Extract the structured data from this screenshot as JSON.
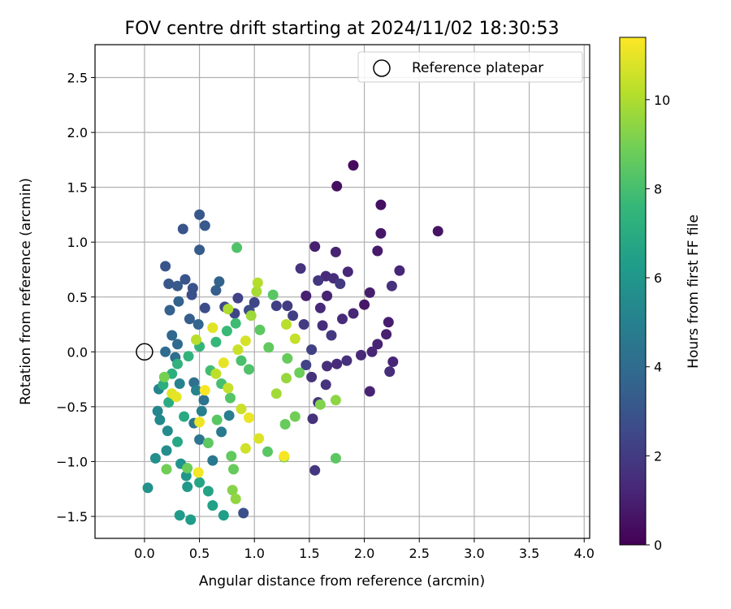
{
  "chart_data": {
    "type": "scatter",
    "title": "FOV centre drift starting at 2024/11/02 18:30:53",
    "xlabel": "Angular distance from reference (arcmin)",
    "ylabel": "Rotation from reference (arcmin)",
    "xlim": [
      -0.45,
      4.05
    ],
    "ylim": [
      -1.7,
      2.8
    ],
    "xticks": [
      0.0,
      0.5,
      1.0,
      1.5,
      2.0,
      2.5,
      3.0,
      3.5,
      4.0
    ],
    "xtick_labels": [
      "0.0",
      "0.5",
      "1.0",
      "1.5",
      "2.0",
      "2.5",
      "3.0",
      "3.5",
      "4.0"
    ],
    "yticks": [
      -1.5,
      -1.0,
      -0.5,
      0.0,
      0.5,
      1.0,
      1.5,
      2.0,
      2.5
    ],
    "ytick_labels": [
      "−1.5",
      "−1.0",
      "−0.5",
      "0.0",
      "0.5",
      "1.0",
      "1.5",
      "2.0",
      "2.5"
    ],
    "grid": true,
    "legend": {
      "position": "top-right",
      "entries": [
        {
          "label": "Reference platepar",
          "marker": "open-circle"
        }
      ]
    },
    "reference_point": {
      "x": 0.0,
      "y": 0.0
    },
    "colorbar": {
      "label": "Hours from first FF file",
      "colormap": "viridis",
      "range": [
        0,
        11.4
      ],
      "ticks": [
        0,
        2,
        4,
        6,
        8,
        10
      ],
      "tick_labels": [
        "0",
        "2",
        "4",
        "6",
        "8",
        "10"
      ]
    },
    "points": [
      [
        1.9,
        1.7,
        0.3
      ],
      [
        1.75,
        1.51,
        0.4
      ],
      [
        2.15,
        1.34,
        0.5
      ],
      [
        2.67,
        1.1,
        0.6
      ],
      [
        2.15,
        1.08,
        0.7
      ],
      [
        2.12,
        0.92,
        0.8
      ],
      [
        1.55,
        0.96,
        1.0
      ],
      [
        1.74,
        0.91,
        1.1
      ],
      [
        2.32,
        0.74,
        1.2
      ],
      [
        1.85,
        0.73,
        1.3
      ],
      [
        1.65,
        0.69,
        1.4
      ],
      [
        1.72,
        0.67,
        1.5
      ],
      [
        2.25,
        0.6,
        1.6
      ],
      [
        1.42,
        0.76,
        1.7
      ],
      [
        1.58,
        0.65,
        1.8
      ],
      [
        1.78,
        0.62,
        1.9
      ],
      [
        2.05,
        0.54,
        0.9
      ],
      [
        1.47,
        0.51,
        1.0
      ],
      [
        1.66,
        0.51,
        1.1
      ],
      [
        1.9,
        0.35,
        1.2
      ],
      [
        2.0,
        0.43,
        0.7
      ],
      [
        2.22,
        0.27,
        0.9
      ],
      [
        2.2,
        0.16,
        1.0
      ],
      [
        1.6,
        0.4,
        1.3
      ],
      [
        1.8,
        0.3,
        1.4
      ],
      [
        1.62,
        0.24,
        1.5
      ],
      [
        2.12,
        0.07,
        1.1
      ],
      [
        2.07,
        0.0,
        1.2
      ],
      [
        1.97,
        -0.03,
        1.3
      ],
      [
        2.26,
        -0.09,
        1.2
      ],
      [
        1.75,
        -0.11,
        1.4
      ],
      [
        2.23,
        -0.18,
        1.5
      ],
      [
        2.05,
        -0.36,
        1.1
      ],
      [
        1.84,
        -0.08,
        1.6
      ],
      [
        1.66,
        -0.13,
        1.5
      ],
      [
        1.52,
        -0.23,
        1.7
      ],
      [
        1.58,
        -0.46,
        1.8
      ],
      [
        1.53,
        -0.61,
        1.6
      ],
      [
        1.65,
        -0.3,
        1.7
      ],
      [
        1.55,
        -1.08,
        1.8
      ],
      [
        1.7,
        0.15,
        1.9
      ],
      [
        1.45,
        0.25,
        2.0
      ],
      [
        1.35,
        0.33,
        2.1
      ],
      [
        1.52,
        0.02,
        2.2
      ],
      [
        1.47,
        -0.12,
        2.3
      ],
      [
        1.3,
        0.42,
        2.0
      ],
      [
        1.2,
        0.42,
        2.2
      ],
      [
        1.0,
        0.45,
        2.4
      ],
      [
        0.95,
        0.38,
        2.6
      ],
      [
        0.82,
        0.35,
        2.4
      ],
      [
        0.85,
        0.49,
        2.3
      ],
      [
        0.73,
        0.41,
        2.5
      ],
      [
        0.55,
        0.4,
        2.7
      ],
      [
        0.43,
        0.52,
        2.8
      ],
      [
        0.37,
        0.66,
        3.0
      ],
      [
        0.44,
        0.58,
        2.9
      ],
      [
        0.19,
        0.78,
        3.0
      ],
      [
        0.22,
        0.62,
        3.1
      ],
      [
        0.3,
        0.6,
        3.2
      ],
      [
        0.35,
        1.12,
        3.0
      ],
      [
        0.5,
        1.25,
        3.1
      ],
      [
        0.55,
        1.15,
        3.2
      ],
      [
        0.5,
        0.93,
        3.3
      ],
      [
        0.65,
        0.56,
        3.4
      ],
      [
        0.68,
        0.64,
        3.6
      ],
      [
        0.23,
        0.38,
        3.5
      ],
      [
        0.31,
        0.46,
        3.6
      ],
      [
        0.41,
        0.3,
        3.4
      ],
      [
        0.49,
        0.25,
        3.7
      ],
      [
        0.25,
        0.15,
        3.8
      ],
      [
        0.3,
        0.07,
        3.9
      ],
      [
        0.19,
        0.0,
        4.0
      ],
      [
        0.28,
        -0.05,
        4.1
      ],
      [
        0.45,
        -0.28,
        4.2
      ],
      [
        0.54,
        -0.44,
        4.3
      ],
      [
        0.45,
        -0.65,
        4.4
      ],
      [
        0.5,
        -0.8,
        4.5
      ],
      [
        0.9,
        -1.47,
        2.8
      ],
      [
        0.62,
        -0.99,
        4.6
      ],
      [
        0.7,
        -0.73,
        4.7
      ],
      [
        0.77,
        -0.58,
        4.8
      ],
      [
        0.52,
        -0.54,
        4.9
      ],
      [
        0.47,
        -0.35,
        5.0
      ],
      [
        0.32,
        -0.29,
        5.1
      ],
      [
        0.13,
        -0.34,
        5.2
      ],
      [
        0.12,
        -0.54,
        5.3
      ],
      [
        0.14,
        -0.62,
        5.4
      ],
      [
        0.21,
        -0.72,
        5.5
      ],
      [
        0.2,
        -0.9,
        5.6
      ],
      [
        0.1,
        -0.97,
        5.7
      ],
      [
        0.03,
        -1.24,
        5.8
      ],
      [
        0.33,
        -1.02,
        5.9
      ],
      [
        0.38,
        -1.13,
        6.0
      ],
      [
        0.39,
        -1.23,
        6.1
      ],
      [
        0.32,
        -1.49,
        6.2
      ],
      [
        0.42,
        -1.53,
        6.3
      ],
      [
        0.72,
        -1.49,
        6.4
      ],
      [
        0.62,
        -1.4,
        6.5
      ],
      [
        0.58,
        -1.27,
        6.6
      ],
      [
        0.5,
        -1.19,
        6.7
      ],
      [
        0.3,
        -0.82,
        6.8
      ],
      [
        0.36,
        -0.59,
        6.9
      ],
      [
        0.22,
        -0.46,
        7.0
      ],
      [
        0.17,
        -0.3,
        7.1
      ],
      [
        0.25,
        -0.2,
        7.2
      ],
      [
        0.3,
        -0.11,
        7.3
      ],
      [
        0.4,
        -0.04,
        7.4
      ],
      [
        0.5,
        0.05,
        7.5
      ],
      [
        0.65,
        0.09,
        7.6
      ],
      [
        0.75,
        0.19,
        7.7
      ],
      [
        0.83,
        0.26,
        7.8
      ],
      [
        0.6,
        -0.17,
        7.9
      ],
      [
        0.7,
        -0.29,
        8.0
      ],
      [
        0.88,
        -0.08,
        8.1
      ],
      [
        0.95,
        -0.16,
        8.2
      ],
      [
        0.78,
        -0.42,
        8.3
      ],
      [
        0.66,
        -0.62,
        8.4
      ],
      [
        0.58,
        -0.83,
        8.5
      ],
      [
        0.79,
        -0.95,
        8.6
      ],
      [
        0.81,
        -1.07,
        8.7
      ],
      [
        0.39,
        -1.06,
        8.8
      ],
      [
        0.2,
        -1.07,
        8.9
      ],
      [
        0.18,
        -0.23,
        9.0
      ],
      [
        0.84,
        0.95,
        8.2
      ],
      [
        1.17,
        0.52,
        8.4
      ],
      [
        1.05,
        0.2,
        8.5
      ],
      [
        1.13,
        0.04,
        8.6
      ],
      [
        1.3,
        -0.06,
        8.7
      ],
      [
        1.41,
        -0.19,
        8.8
      ],
      [
        1.37,
        -0.59,
        8.9
      ],
      [
        1.28,
        -0.66,
        8.7
      ],
      [
        1.74,
        -0.97,
        8.5
      ],
      [
        1.12,
        -0.91,
        8.4
      ],
      [
        1.27,
        -0.96,
        9.0
      ],
      [
        0.8,
        -1.26,
        9.3
      ],
      [
        0.83,
        -1.34,
        9.5
      ],
      [
        1.74,
        -0.44,
        9.4
      ],
      [
        1.6,
        -0.48,
        9.2
      ],
      [
        1.29,
        -0.24,
        9.6
      ],
      [
        1.2,
        -0.38,
        9.8
      ],
      [
        0.97,
        0.33,
        9.7
      ],
      [
        1.02,
        0.55,
        9.9
      ],
      [
        1.03,
        0.63,
        10.1
      ],
      [
        0.76,
        0.39,
        10.0
      ],
      [
        0.47,
        0.11,
        10.2
      ],
      [
        0.65,
        -0.2,
        10.3
      ],
      [
        0.76,
        -0.33,
        10.4
      ],
      [
        0.88,
        -0.52,
        10.5
      ],
      [
        0.92,
        -0.88,
        10.6
      ],
      [
        1.04,
        -0.79,
        10.8
      ],
      [
        0.25,
        -0.38,
        10.9
      ],
      [
        0.29,
        -0.41,
        11.0
      ],
      [
        0.5,
        -0.64,
        11.1
      ],
      [
        0.49,
        -1.1,
        11.2
      ],
      [
        1.27,
        -0.95,
        11.3
      ],
      [
        1.29,
        0.25,
        10.2
      ],
      [
        1.37,
        0.12,
        10.4
      ],
      [
        0.85,
        0.02,
        10.5
      ],
      [
        0.92,
        0.1,
        10.7
      ],
      [
        0.62,
        0.22,
        10.9
      ],
      [
        0.72,
        -0.1,
        11.0
      ],
      [
        0.95,
        -0.6,
        11.1
      ],
      [
        0.55,
        -0.35,
        11.3
      ]
    ]
  }
}
